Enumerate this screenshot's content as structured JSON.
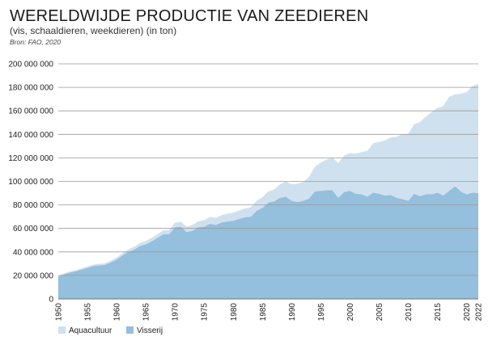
{
  "chart_data": {
    "type": "area",
    "stacked": true,
    "title": "WERELDWIJDE PRODUCTIE VAN ZEEDIEREN",
    "subtitle": "(vis, schaaldieren, weekdieren) (in ton)",
    "source": "Bron: FAO, 2020",
    "xlabel": "",
    "ylabel": "",
    "ylim": [
      0,
      200000000
    ],
    "xlim": [
      1950,
      2022
    ],
    "grid": "horizontal",
    "legend_position": "bottom-left",
    "y_ticks": [
      0,
      20000000,
      40000000,
      60000000,
      80000000,
      100000000,
      120000000,
      140000000,
      160000000,
      180000000,
      200000000
    ],
    "y_tick_labels": [
      "0",
      "20 000 000",
      "40 000 000",
      "60 000 000",
      "80 000 000",
      "100 000 000",
      "120 000 000",
      "140 000 000",
      "160 000 000",
      "180 000 000",
      "200 000 000"
    ],
    "x_tick_labels": [
      "1950",
      "1955",
      "1960",
      "1965",
      "1970",
      "1975",
      "1980",
      "1985",
      "1990",
      "1995",
      "2000",
      "2005",
      "2010",
      "2015",
      "2020",
      "2022"
    ],
    "x_ticks": [
      1950,
      1955,
      1960,
      1965,
      1970,
      1975,
      1980,
      1985,
      1990,
      1995,
      2000,
      2005,
      2010,
      2015,
      2020,
      2022
    ],
    "x": [
      1950,
      1951,
      1952,
      1953,
      1954,
      1955,
      1956,
      1957,
      1958,
      1959,
      1960,
      1961,
      1962,
      1963,
      1964,
      1965,
      1966,
      1967,
      1968,
      1969,
      1970,
      1971,
      1972,
      1973,
      1974,
      1975,
      1976,
      1977,
      1978,
      1979,
      1980,
      1981,
      1982,
      1983,
      1984,
      1985,
      1986,
      1987,
      1988,
      1989,
      1990,
      1991,
      1992,
      1993,
      1994,
      1995,
      1996,
      1997,
      1998,
      1999,
      2000,
      2001,
      2002,
      2003,
      2004,
      2005,
      2006,
      2007,
      2008,
      2009,
      2010,
      2011,
      2012,
      2013,
      2014,
      2015,
      2016,
      2017,
      2018,
      2019,
      2020,
      2021,
      2022
    ],
    "series": [
      {
        "name": "Visserij",
        "color": "#94bfdd",
        "values": [
          19000000,
          21000000,
          22500000,
          23500000,
          25000000,
          26500000,
          28000000,
          28500000,
          29000000,
          31000000,
          33500000,
          37000000,
          40000000,
          42000000,
          45000000,
          46500000,
          49000000,
          52000000,
          55000000,
          55000000,
          61000000,
          61500000,
          57000000,
          58000000,
          61000000,
          61500000,
          64000000,
          63000000,
          65000000,
          66000000,
          66500000,
          68000000,
          69500000,
          70000000,
          75000000,
          77500000,
          82000000,
          83000000,
          86000000,
          87000000,
          83500000,
          82500000,
          83500000,
          85500000,
          91500000,
          92000000,
          92500000,
          92500000,
          86000000,
          91000000,
          92000000,
          89500000,
          89000000,
          87000000,
          90500000,
          89500000,
          88000000,
          88500000,
          86000000,
          85000000,
          83500000,
          89500000,
          87500000,
          89000000,
          89000000,
          90500000,
          88000000,
          92000000,
          96000000,
          91500000,
          89000000,
          90500000,
          90000000
        ]
      },
      {
        "name": "Aquacultuur",
        "color": "#cfe1ef",
        "values": [
          700000,
          800000,
          900000,
          1000000,
          1100000,
          1200000,
          1300000,
          1400000,
          1500000,
          1600000,
          1700000,
          1900000,
          2100000,
          2300000,
          2500000,
          2700000,
          2900000,
          3100000,
          3300000,
          3600000,
          3900000,
          4200000,
          4500000,
          4800000,
          5100000,
          5400000,
          5700000,
          6000000,
          6300000,
          6600000,
          6900000,
          7200000,
          7500000,
          8000000,
          8500000,
          9000000,
          9500000,
          10000000,
          11500000,
          13000000,
          14000000,
          15500000,
          16000000,
          18500000,
          21000000,
          24000000,
          26000000,
          28000000,
          29500000,
          31000000,
          32000000,
          34000000,
          36000000,
          39000000,
          42000000,
          44000000,
          47000000,
          49000000,
          52000000,
          55000000,
          57000000,
          59000000,
          63000000,
          66000000,
          70000000,
          72000000,
          76000000,
          80000000,
          78000000,
          83000000,
          87000000,
          90500000,
          93000000
        ]
      }
    ]
  }
}
